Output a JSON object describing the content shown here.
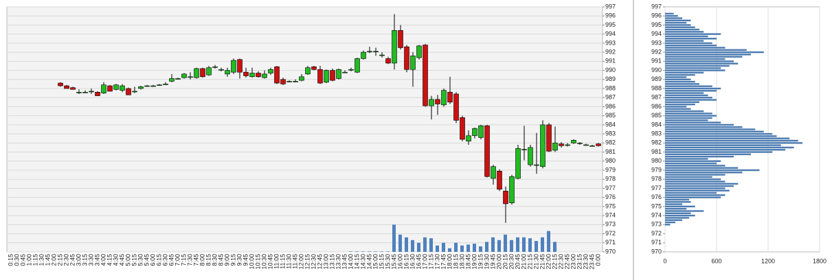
{
  "chart_data": [
    {
      "type": "candlestick",
      "categories": [
        "0:15",
        "0:30",
        "0:45",
        "1:00",
        "1:15",
        "1:30",
        "1:45",
        "2:00",
        "2:15",
        "2:30",
        "2:45",
        "3:00",
        "3:15",
        "3:30",
        "3:45",
        "4:00",
        "4:15",
        "4:30",
        "4:45",
        "5:00",
        "5:15",
        "5:30",
        "5:45",
        "6:00",
        "6:15",
        "6:30",
        "6:45",
        "7:00",
        "7:15",
        "7:30",
        "7:45",
        "8:00",
        "8:15",
        "8:30",
        "8:45",
        "9:00",
        "9:15",
        "9:30",
        "9:45",
        "10:00",
        "10:15",
        "10:30",
        "10:45",
        "11:00",
        "11:15",
        "11:30",
        "11:45",
        "12:00",
        "12:15",
        "12:30",
        "12:45",
        "13:00",
        "13:15",
        "13:30",
        "13:45",
        "14:00",
        "14:15",
        "14:30",
        "14:45",
        "15:00",
        "15:15",
        "15:30",
        "15:45",
        "16:00",
        "16:15",
        "16:30",
        "16:45",
        "17:00",
        "17:15",
        "17:30",
        "17:45",
        "18:00",
        "18:15",
        "18:30",
        "18:45",
        "19:00",
        "19:15",
        "19:30",
        "19:45",
        "20:00",
        "20:15",
        "20:30",
        "20:45",
        "21:00",
        "21:15",
        "21:30",
        "21:45",
        "22:00",
        "22:15",
        "22:30",
        "22:45",
        "23:00",
        "23:15",
        "23:30",
        "23:45",
        "0:00"
      ],
      "open": [
        null,
        null,
        null,
        null,
        null,
        null,
        null,
        null,
        988.6,
        988.3,
        988.1,
        987.6,
        987.6,
        987.7,
        987.6,
        987.5,
        988.3,
        987.9,
        987.8,
        988.0,
        987.7,
        988.0,
        988.3,
        988.3,
        988.4,
        988.5,
        988.8,
        989.1,
        989.2,
        989.3,
        989.2,
        990.2,
        989.5,
        990.4,
        990.1,
        989.6,
        989.8,
        991.2,
        989.8,
        989.3,
        989.7,
        989.2,
        989.7,
        990.4,
        989.0,
        988.8,
        988.8,
        988.9,
        989.6,
        990.4,
        990.1,
        988.7,
        990.0,
        989.1,
        989.8,
        990.1,
        989.8,
        991.3,
        992.1,
        992.1,
        991.7,
        991.3,
        990.8,
        994.4,
        992.6,
        990.1,
        991.4,
        992.8,
        986.1,
        986.8,
        986.2,
        987.6,
        987.4,
        984.8,
        982.2,
        982.8,
        982.6,
        983.9,
        978.1,
        978.9,
        976.7,
        975.4,
        978.1,
        981.3,
        979.6,
        979.6,
        979.4,
        984.0,
        981.2,
        981.9,
        981.8,
        982.0,
        982.0,
        981.8,
        981.7,
        981.9
      ],
      "high": [
        null,
        null,
        null,
        null,
        null,
        null,
        null,
        null,
        988.7,
        988.4,
        988.2,
        987.9,
        987.8,
        988.0,
        987.7,
        988.7,
        988.4,
        988.5,
        988.5,
        988.1,
        988.2,
        988.3,
        988.4,
        988.4,
        988.5,
        988.7,
        989.6,
        989.2,
        989.7,
        989.8,
        990.3,
        990.3,
        990.5,
        990.6,
        990.3,
        990.3,
        991.3,
        991.3,
        990.3,
        990.3,
        989.9,
        990.0,
        990.3,
        990.5,
        989.2,
        988.9,
        989.0,
        989.6,
        990.5,
        990.5,
        990.5,
        990.1,
        990.2,
        990.2,
        990.0,
        990.3,
        991.4,
        992.2,
        992.6,
        992.5,
        992.0,
        991.5,
        996.2,
        995.0,
        992.8,
        992.0,
        992.8,
        992.9,
        987.2,
        987.3,
        988.0,
        989.3,
        987.6,
        985.0,
        983.4,
        983.7,
        984.0,
        984.0,
        979.6,
        979.1,
        977.2,
        978.5,
        981.8,
        983.9,
        981.8,
        983.1,
        984.5,
        984.2,
        983.8,
        982.1,
        982.0,
        982.4,
        982.1,
        981.9,
        981.8,
        982.0
      ],
      "low": [
        null,
        null,
        null,
        null,
        null,
        null,
        null,
        null,
        988.2,
        988.0,
        987.9,
        987.4,
        987.5,
        987.4,
        987.2,
        987.4,
        987.7,
        987.8,
        987.6,
        987.3,
        987.5,
        987.9,
        988.2,
        988.2,
        988.3,
        988.4,
        988.7,
        989.0,
        989.1,
        989.0,
        989.1,
        989.2,
        989.4,
        990.2,
        989.9,
        989.3,
        989.6,
        989.1,
        989.2,
        989.2,
        989.2,
        989.1,
        989.5,
        988.5,
        988.4,
        988.7,
        988.7,
        988.8,
        989.5,
        990.0,
        988.5,
        988.6,
        988.8,
        989.0,
        989.7,
        989.9,
        989.7,
        991.2,
        991.9,
        991.6,
        991.4,
        990.7,
        990.1,
        992.3,
        989.8,
        988.2,
        991.2,
        986.0,
        984.6,
        985.1,
        986.0,
        986.3,
        984.2,
        982.2,
        981.8,
        982.5,
        982.4,
        978.2,
        977.4,
        976.7,
        973.2,
        975.2,
        978.0,
        980.1,
        979.4,
        978.6,
        979.2,
        981.0,
        981.0,
        981.5,
        981.6,
        981.9,
        981.8,
        981.7,
        981.6,
        981.6
      ],
      "close": [
        null,
        null,
        null,
        null,
        null,
        null,
        null,
        null,
        988.3,
        988.0,
        987.9,
        987.6,
        987.6,
        987.7,
        987.2,
        988.4,
        987.7,
        988.4,
        988.3,
        987.3,
        987.7,
        988.2,
        988.3,
        988.3,
        988.4,
        988.5,
        989.1,
        989.1,
        989.6,
        989.3,
        990.2,
        989.3,
        990.3,
        990.4,
        990.1,
        990.0,
        991.1,
        989.8,
        989.4,
        989.7,
        989.3,
        989.6,
        990.1,
        988.6,
        988.5,
        988.8,
        988.8,
        989.3,
        990.3,
        990.1,
        988.6,
        990.0,
        988.9,
        990.1,
        989.8,
        990.1,
        991.3,
        992.0,
        992.1,
        992.1,
        991.7,
        990.8,
        994.4,
        992.5,
        990.1,
        991.6,
        992.7,
        986.1,
        986.8,
        986.3,
        987.8,
        986.5,
        984.5,
        982.4,
        982.8,
        983.6,
        983.9,
        978.3,
        979.4,
        976.9,
        975.3,
        978.3,
        981.4,
        981.3,
        981.5,
        979.6,
        984.0,
        981.1,
        982.0,
        981.7,
        981.8,
        982.3,
        982.0,
        981.8,
        981.7,
        981.7
      ],
      "volume": [
        null,
        null,
        null,
        null,
        null,
        null,
        null,
        null,
        null,
        null,
        null,
        null,
        null,
        null,
        null,
        null,
        null,
        null,
        null,
        null,
        null,
        null,
        null,
        null,
        null,
        null,
        null,
        null,
        null,
        null,
        null,
        null,
        null,
        null,
        null,
        null,
        null,
        null,
        null,
        null,
        null,
        null,
        null,
        null,
        null,
        null,
        null,
        null,
        null,
        null,
        null,
        null,
        null,
        null,
        null,
        0.05,
        0.05,
        0.05,
        0.05,
        0.05,
        0.05,
        0.05,
        3.0,
        1.9,
        1.6,
        1.3,
        1.0,
        1.6,
        1.5,
        0.7,
        1.0,
        0.4,
        1.0,
        0.7,
        0.8,
        0.9,
        0.6,
        1.1,
        1.6,
        1.3,
        1.9,
        1.3,
        1.6,
        1.6,
        1.5,
        1.2,
        1.6,
        2.3,
        1.1,
        null,
        null,
        null,
        null,
        null,
        null,
        null
      ],
      "up_color": "#22bb22",
      "down_color": "#cc1111",
      "volume_color": "#4f81bd",
      "ylim": [
        970,
        997
      ],
      "yticks": [
        970,
        971,
        972,
        973,
        974,
        975,
        976,
        977,
        978,
        979,
        980,
        981,
        982,
        983,
        984,
        985,
        986,
        987,
        988,
        989,
        990,
        991,
        992,
        993,
        994,
        995,
        996,
        997
      ],
      "grid": true
    },
    {
      "type": "barh",
      "prices": [
        973.0,
        973.25,
        973.5,
        973.75,
        974.0,
        974.25,
        974.5,
        974.75,
        975.0,
        975.25,
        975.5,
        975.75,
        976.0,
        976.25,
        976.5,
        976.75,
        977.0,
        977.25,
        977.5,
        977.75,
        978.0,
        978.25,
        978.5,
        978.75,
        979.0,
        979.25,
        979.5,
        979.75,
        980.0,
        980.25,
        980.5,
        980.75,
        981.0,
        981.25,
        981.5,
        981.75,
        982.0,
        982.25,
        982.5,
        982.75,
        983.0,
        983.25,
        983.5,
        983.75,
        984.0,
        984.25,
        984.5,
        984.75,
        985.0,
        985.25,
        985.5,
        985.75,
        986.0,
        986.25,
        986.5,
        986.75,
        987.0,
        987.25,
        987.5,
        987.75,
        988.0,
        988.25,
        988.5,
        988.75,
        989.0,
        989.25,
        989.5,
        989.75,
        990.0,
        990.25,
        990.5,
        990.75,
        991.0,
        991.25,
        991.5,
        991.75,
        992.0,
        992.25,
        992.5,
        992.75,
        993.0,
        993.25,
        993.5,
        993.75,
        994.0,
        994.25,
        994.5,
        994.75,
        995.0,
        995.25,
        995.5,
        995.75,
        996.0,
        996.25
      ],
      "values": [
        60,
        120,
        200,
        280,
        350,
        300,
        450,
        250,
        350,
        200,
        300,
        280,
        650,
        700,
        600,
        750,
        700,
        800,
        850,
        700,
        650,
        550,
        700,
        900,
        1100,
        850,
        700,
        600,
        650,
        500,
        800,
        1000,
        1250,
        1400,
        1500,
        1350,
        1600,
        1550,
        1450,
        1300,
        1250,
        1150,
        1050,
        900,
        800,
        650,
        500,
        550,
        600,
        550,
        450,
        300,
        250,
        350,
        400,
        600,
        550,
        500,
        450,
        600,
        650,
        550,
        400,
        350,
        300,
        250,
        350,
        450,
        700,
        650,
        750,
        850,
        800,
        700,
        900,
        1000,
        1150,
        950,
        700,
        600,
        550,
        450,
        600,
        500,
        650,
        450,
        400,
        350,
        300,
        250,
        300,
        200,
        150,
        100
      ],
      "color": "#4a7ab0",
      "xlim": [
        0,
        1800
      ],
      "xticks": [
        0,
        600,
        1200,
        1800
      ],
      "ylim": [
        970,
        997
      ],
      "yticks": [
        970,
        971,
        972,
        973,
        974,
        975,
        976,
        977,
        978,
        979,
        980,
        981,
        982,
        983,
        984,
        985,
        986,
        987,
        988,
        989,
        990,
        991,
        992,
        993,
        994,
        995,
        996,
        997
      ],
      "grid": true
    }
  ]
}
